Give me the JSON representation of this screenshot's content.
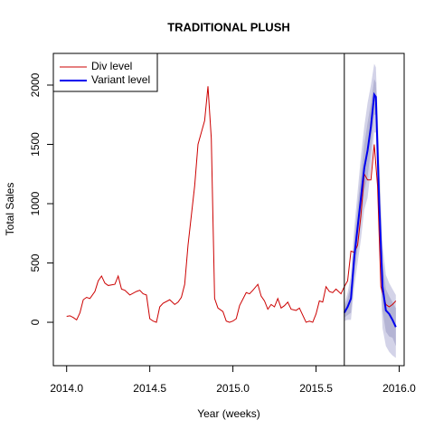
{
  "chart_data": {
    "type": "line",
    "title": "TRADITIONAL PLUSH",
    "xlabel": "Year (weeks)",
    "ylabel": "Total Sales",
    "xlim": [
      2013.92,
      2016.03
    ],
    "ylim": [
      -366,
      2267
    ],
    "xticks": [
      {
        "value": 2014,
        "label": "2014.0"
      },
      {
        "value": 2014.5,
        "label": "2014.5"
      },
      {
        "value": 2015,
        "label": "2015.0"
      },
      {
        "value": 2015.5,
        "label": "2015.5"
      },
      {
        "value": 2016,
        "label": "2016.0"
      }
    ],
    "yticks": [
      0,
      500,
      1000,
      1500,
      2000
    ],
    "vline": 2015.67,
    "legend": "top-left",
    "intervals": [
      {
        "color": "#d3d3e8",
        "x": [
          2015.67,
          2015.69,
          2015.71,
          2015.73,
          2015.75,
          2015.77,
          2015.79,
          2015.81,
          2015.83,
          2015.85,
          2015.86,
          2015.88,
          2015.9,
          2015.92,
          2015.94,
          2015.96,
          2015.98
        ],
        "upper": [
          150,
          250,
          400,
          800,
          1100,
          1400,
          1650,
          1850,
          2000,
          2180,
          2150,
          1400,
          650,
          400,
          330,
          280,
          230
        ],
        "lower": [
          10,
          20,
          20,
          300,
          500,
          700,
          950,
          1050,
          1300,
          1600,
          1600,
          600,
          -50,
          -200,
          -250,
          -280,
          -300
        ]
      },
      {
        "color": "#b4b4d4",
        "x": [
          2015.67,
          2015.69,
          2015.71,
          2015.73,
          2015.75,
          2015.77,
          2015.79,
          2015.81,
          2015.83,
          2015.85,
          2015.86,
          2015.88,
          2015.9,
          2015.92,
          2015.94,
          2015.96,
          2015.98
        ],
        "upper": [
          120,
          200,
          320,
          700,
          980,
          1250,
          1500,
          1680,
          1850,
          2050,
          2020,
          1250,
          500,
          280,
          220,
          170,
          120
        ],
        "lower": [
          40,
          60,
          80,
          400,
          620,
          850,
          1100,
          1230,
          1450,
          1750,
          1750,
          750,
          100,
          -80,
          -120,
          -130,
          -200
        ]
      }
    ],
    "series": [
      {
        "name": "Div level",
        "color": "#cc0000",
        "width": 1,
        "x": [
          2014,
          2014.02,
          2014.04,
          2014.06,
          2014.08,
          2014.1,
          2014.12,
          2014.14,
          2014.17,
          2014.19,
          2014.21,
          2014.23,
          2014.25,
          2014.29,
          2014.31,
          2014.33,
          2014.35,
          2014.38,
          2014.42,
          2014.44,
          2014.46,
          2014.48,
          2014.5,
          2014.52,
          2014.54,
          2014.56,
          2014.58,
          2014.62,
          2014.65,
          2014.67,
          2014.69,
          2014.71,
          2014.73,
          2014.75,
          2014.77,
          2014.79,
          2014.81,
          2014.83,
          2014.85,
          2014.87,
          2014.89,
          2014.91,
          2014.94,
          2014.96,
          2014.98,
          2015,
          2015.02,
          2015.04,
          2015.08,
          2015.1,
          2015.12,
          2015.15,
          2015.17,
          2015.19,
          2015.21,
          2015.23,
          2015.25,
          2015.27,
          2015.29,
          2015.31,
          2015.33,
          2015.35,
          2015.38,
          2015.4,
          2015.42,
          2015.44,
          2015.46,
          2015.48,
          2015.5,
          2015.52,
          2015.54,
          2015.56,
          2015.58,
          2015.6,
          2015.62,
          2015.65,
          2015.67,
          2015.69,
          2015.71,
          2015.73,
          2015.75,
          2015.77,
          2015.79,
          2015.81,
          2015.83,
          2015.85,
          2015.87,
          2015.89,
          2015.92,
          2015.94,
          2015.96,
          2015.98
        ],
        "values": [
          50,
          55,
          40,
          20,
          80,
          190,
          210,
          200,
          260,
          350,
          390,
          330,
          310,
          320,
          390,
          280,
          270,
          230,
          260,
          270,
          240,
          230,
          30,
          10,
          0,
          130,
          160,
          190,
          150,
          170,
          210,
          320,
          650,
          900,
          1150,
          1500,
          1600,
          1700,
          1990,
          1550,
          200,
          120,
          90,
          10,
          0,
          10,
          30,
          140,
          250,
          240,
          270,
          320,
          220,
          180,
          110,
          150,
          130,
          200,
          120,
          140,
          170,
          110,
          100,
          120,
          60,
          0,
          10,
          0,
          70,
          180,
          170,
          300,
          260,
          250,
          280,
          240,
          300,
          350,
          600,
          590,
          650,
          900,
          1250,
          1200,
          1200,
          1500,
          1150,
          300,
          150,
          130,
          150,
          180
        ]
      },
      {
        "name": "Variant level",
        "color": "#0000ee",
        "width": 2,
        "x": [
          2015.67,
          2015.69,
          2015.71,
          2015.73,
          2015.75,
          2015.77,
          2015.79,
          2015.81,
          2015.83,
          2015.85,
          2015.86,
          2015.88,
          2015.9,
          2015.92,
          2015.94,
          2015.96,
          2015.98
        ],
        "values": [
          80,
          130,
          200,
          550,
          800,
          1050,
          1300,
          1450,
          1650,
          1920,
          1900,
          1000,
          300,
          100,
          70,
          20,
          -40
        ]
      }
    ]
  }
}
